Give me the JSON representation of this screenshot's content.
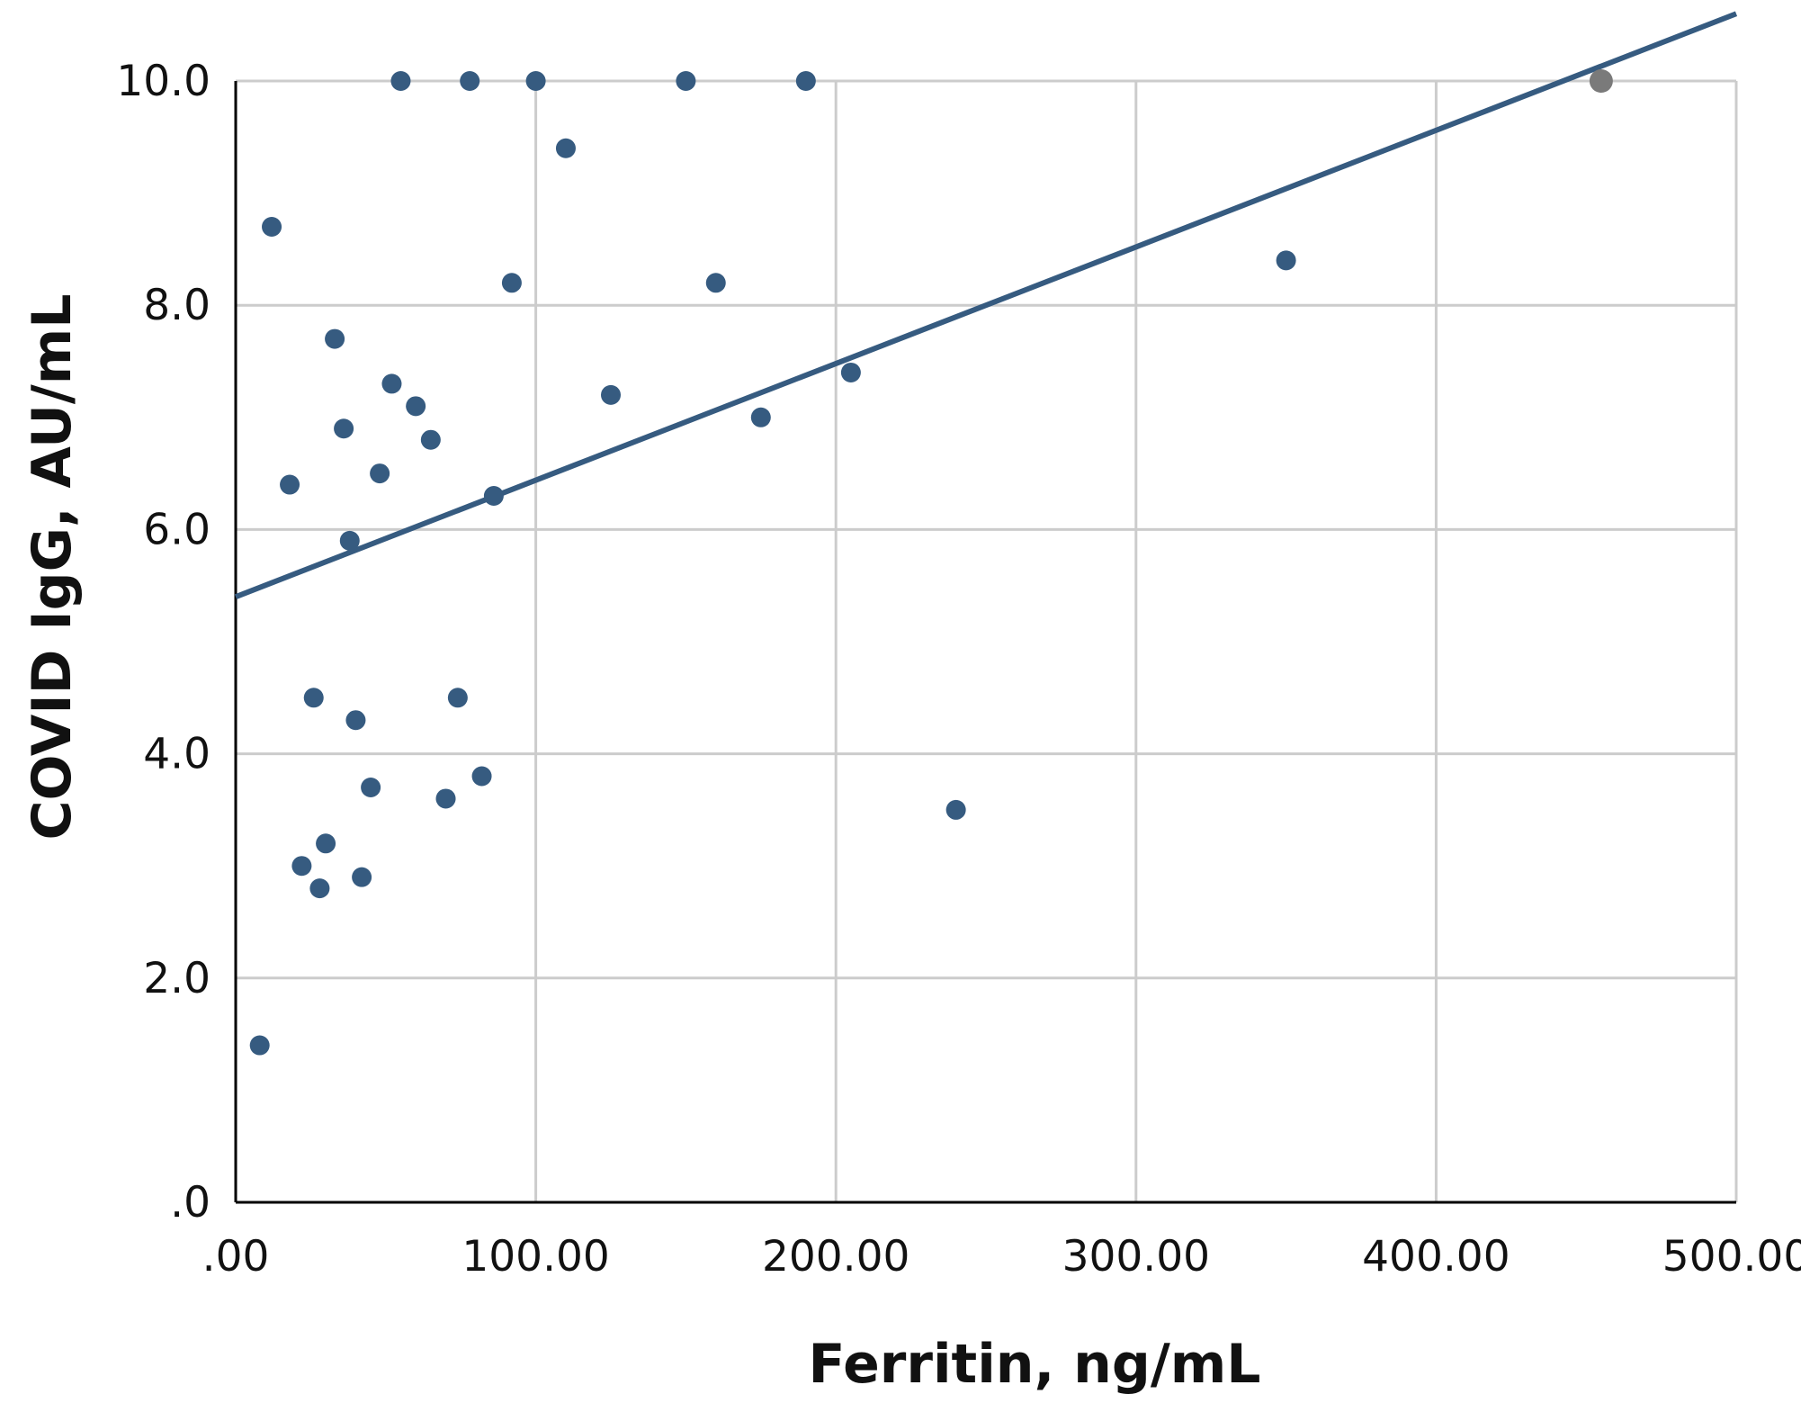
{
  "chart_data": {
    "type": "scatter",
    "xlabel": "Ferritin, ng/mL",
    "ylabel": "COVID IgG, AU/mL",
    "xlim": [
      0,
      500
    ],
    "ylim": [
      0,
      10
    ],
    "x_ticks": [
      ".00",
      "100.00",
      "200.00",
      "300.00",
      "400.00",
      "500.00"
    ],
    "y_ticks": [
      ".0",
      "2.0",
      "4.0",
      "6.0",
      "8.0",
      "10.0"
    ],
    "grid": true,
    "legend": "none",
    "colors": {
      "points": "#365b80",
      "highlight_point": "#7a7a7a",
      "trendline": "#365b80",
      "grid": "#cccccc",
      "axis": "#000000"
    },
    "series": [
      {
        "points": [
          {
            "x": 55,
            "y": 10.0
          },
          {
            "x": 78,
            "y": 10.0
          },
          {
            "x": 100,
            "y": 10.0
          },
          {
            "x": 150,
            "y": 10.0
          },
          {
            "x": 190,
            "y": 10.0
          },
          {
            "x": 110,
            "y": 9.4
          },
          {
            "x": 12,
            "y": 8.7
          },
          {
            "x": 92,
            "y": 8.2
          },
          {
            "x": 160,
            "y": 8.2
          },
          {
            "x": 33,
            "y": 7.7
          },
          {
            "x": 52,
            "y": 7.3
          },
          {
            "x": 60,
            "y": 7.1
          },
          {
            "x": 125,
            "y": 7.2
          },
          {
            "x": 205,
            "y": 7.4
          },
          {
            "x": 175,
            "y": 7.0
          },
          {
            "x": 36,
            "y": 6.9
          },
          {
            "x": 65,
            "y": 6.8
          },
          {
            "x": 48,
            "y": 6.5
          },
          {
            "x": 18,
            "y": 6.4
          },
          {
            "x": 86,
            "y": 6.3
          },
          {
            "x": 38,
            "y": 5.9
          },
          {
            "x": 26,
            "y": 4.5
          },
          {
            "x": 74,
            "y": 4.5
          },
          {
            "x": 40,
            "y": 4.3
          },
          {
            "x": 82,
            "y": 3.8
          },
          {
            "x": 45,
            "y": 3.7
          },
          {
            "x": 70,
            "y": 3.6
          },
          {
            "x": 240,
            "y": 3.5
          },
          {
            "x": 30,
            "y": 3.2
          },
          {
            "x": 22,
            "y": 3.0
          },
          {
            "x": 42,
            "y": 2.9
          },
          {
            "x": 28,
            "y": 2.8
          },
          {
            "x": 8,
            "y": 1.4
          },
          {
            "x": 350,
            "y": 8.4
          }
        ]
      },
      {
        "points": [
          {
            "x": 455,
            "y": 10.0
          }
        ]
      }
    ],
    "trendline": {
      "x_start": 0,
      "y_start": 5.4,
      "x_end": 500,
      "y_end": 10.6
    }
  }
}
